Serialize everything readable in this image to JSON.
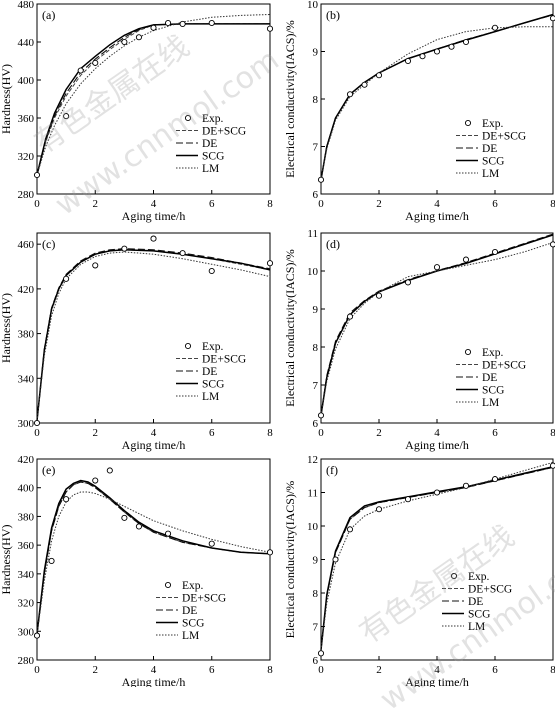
{
  "watermark": {
    "text_cn": "有色金属在线",
    "text_url": "www.cnnmol.com"
  },
  "legend_labels": [
    "Exp.",
    "DE+SCG",
    "DE",
    "SCG",
    "LM"
  ],
  "chart_data": [
    {
      "panel": "(a)",
      "type": "line",
      "xlabel": "Aging time/h",
      "ylabel": "Hardness(HV)",
      "xlim": [
        0,
        8
      ],
      "ylim": [
        280,
        480
      ],
      "xticks": [
        0,
        2,
        4,
        6,
        8
      ],
      "yticks": [
        280,
        320,
        360,
        400,
        440,
        480
      ],
      "exp": {
        "x": [
          0,
          1,
          1.5,
          2,
          3,
          3.5,
          4,
          4.5,
          5,
          6,
          8
        ],
        "y": [
          300,
          362,
          410,
          418,
          440,
          445,
          455,
          460,
          459,
          460,
          454
        ]
      },
      "series": [
        {
          "name": "DE+SCG",
          "x": [
            0,
            0.3,
            0.6,
            1,
            1.5,
            2,
            2.5,
            3,
            3.5,
            4,
            5,
            6,
            7,
            8
          ],
          "y": [
            300,
            335,
            360,
            383,
            405,
            420,
            432,
            443,
            452,
            458,
            459,
            459,
            459,
            459
          ]
        },
        {
          "name": "DE",
          "x": [
            0,
            0.3,
            0.6,
            1,
            1.5,
            2,
            2.5,
            3,
            3.5,
            4,
            5,
            6,
            7,
            8
          ],
          "y": [
            300,
            336,
            362,
            386,
            408,
            422,
            434,
            445,
            453,
            458,
            459,
            459,
            459,
            459
          ]
        },
        {
          "name": "SCG",
          "x": [
            0,
            0.3,
            0.6,
            1,
            1.5,
            2,
            2.5,
            3,
            3.5,
            4,
            5,
            6,
            7,
            8
          ],
          "y": [
            300,
            338,
            365,
            390,
            412,
            425,
            437,
            447,
            454,
            458,
            459,
            459,
            459,
            459
          ]
        },
        {
          "name": "LM",
          "x": [
            0,
            0.3,
            0.6,
            1,
            1.5,
            2,
            2.5,
            3,
            3.5,
            4,
            5,
            6,
            7,
            8
          ],
          "y": [
            300,
            330,
            352,
            375,
            396,
            412,
            425,
            436,
            445,
            452,
            461,
            466,
            468,
            469
          ]
        }
      ]
    },
    {
      "panel": "(b)",
      "type": "line",
      "xlabel": "Aging time/h",
      "ylabel": "Electrical conductivity(IACS)/%",
      "xlim": [
        0,
        8
      ],
      "ylim": [
        6,
        10
      ],
      "xticks": [
        0,
        2,
        4,
        6,
        8
      ],
      "yticks": [
        6,
        7,
        8,
        9,
        10
      ],
      "exp": {
        "x": [
          0,
          1,
          1.5,
          2,
          3,
          3.5,
          4,
          4.5,
          5,
          6,
          8
        ],
        "y": [
          6.3,
          8.1,
          8.3,
          8.5,
          8.8,
          8.9,
          9.0,
          9.1,
          9.2,
          9.5,
          9.7
        ]
      },
      "series": [
        {
          "name": "DE+SCG",
          "x": [
            0,
            0.2,
            0.5,
            1,
            1.5,
            2,
            3,
            4,
            5,
            6,
            7,
            8
          ],
          "y": [
            6.3,
            7.0,
            7.6,
            8.1,
            8.35,
            8.55,
            8.85,
            9.05,
            9.25,
            9.42,
            9.6,
            9.78
          ]
        },
        {
          "name": "DE",
          "x": [
            0,
            0.2,
            0.5,
            1,
            1.5,
            2,
            3,
            4,
            5,
            6,
            7,
            8
          ],
          "y": [
            6.3,
            7.0,
            7.6,
            8.1,
            8.35,
            8.55,
            8.85,
            9.05,
            9.25,
            9.42,
            9.6,
            9.77
          ]
        },
        {
          "name": "SCG",
          "x": [
            0,
            0.2,
            0.5,
            1,
            1.5,
            2,
            3,
            4,
            5,
            6,
            7,
            8
          ],
          "y": [
            6.3,
            7.0,
            7.6,
            8.1,
            8.35,
            8.55,
            8.85,
            9.05,
            9.24,
            9.42,
            9.6,
            9.78
          ]
        },
        {
          "name": "LM",
          "x": [
            0,
            0.2,
            0.5,
            1,
            1.5,
            2,
            3,
            4,
            5,
            6,
            7,
            8
          ],
          "y": [
            6.3,
            6.95,
            7.55,
            8.05,
            8.3,
            8.55,
            8.95,
            9.25,
            9.42,
            9.5,
            9.52,
            9.52
          ]
        }
      ]
    },
    {
      "panel": "(c)",
      "type": "line",
      "xlabel": "Aging time/h",
      "ylabel": "Hardness(HV)",
      "xlim": [
        0,
        8
      ],
      "ylim": [
        300,
        470
      ],
      "xticks": [
        0,
        2,
        4,
        6,
        8
      ],
      "yticks": [
        300,
        340,
        380,
        420,
        460
      ],
      "exp": {
        "x": [
          0,
          1,
          2,
          3,
          4,
          5,
          6,
          8
        ],
        "y": [
          300,
          429,
          441,
          456,
          465,
          452,
          436,
          443
        ]
      },
      "series": [
        {
          "name": "DE+SCG",
          "x": [
            0,
            0.25,
            0.5,
            0.75,
            1,
            1.5,
            2,
            2.5,
            3,
            4,
            5,
            6,
            7,
            8
          ],
          "y": [
            302,
            365,
            402,
            420,
            432,
            444,
            451,
            454,
            455,
            454,
            451,
            447,
            442,
            437
          ]
        },
        {
          "name": "DE",
          "x": [
            0,
            0.25,
            0.5,
            0.75,
            1,
            1.5,
            2,
            2.5,
            3,
            4,
            5,
            6,
            7,
            8
          ],
          "y": [
            302,
            366,
            403,
            421,
            433,
            445,
            452,
            455,
            456,
            455,
            452,
            448,
            443,
            438
          ]
        },
        {
          "name": "SCG",
          "x": [
            0,
            0.25,
            0.5,
            0.75,
            1,
            1.5,
            2,
            2.5,
            3,
            4,
            5,
            6,
            7,
            8
          ],
          "y": [
            302,
            365,
            402,
            420,
            432,
            444,
            451,
            454,
            455,
            454,
            451,
            447,
            443,
            437
          ]
        },
        {
          "name": "LM",
          "x": [
            0,
            0.25,
            0.5,
            0.75,
            1,
            1.5,
            2,
            2.5,
            3,
            4,
            5,
            6,
            7,
            8
          ],
          "y": [
            302,
            360,
            396,
            416,
            429,
            442,
            449,
            452,
            453,
            451,
            447,
            442,
            437,
            431
          ]
        }
      ]
    },
    {
      "panel": "(d)",
      "type": "line",
      "xlabel": "Aging time/h",
      "ylabel": "Electrical conductivity(IACS)/%",
      "xlim": [
        0,
        8
      ],
      "ylim": [
        6,
        11
      ],
      "xticks": [
        0,
        2,
        4,
        6,
        8
      ],
      "yticks": [
        6,
        7,
        8,
        9,
        10,
        11
      ],
      "exp": {
        "x": [
          0,
          1,
          2,
          3,
          4,
          5,
          6,
          8
        ],
        "y": [
          6.2,
          8.8,
          9.35,
          9.7,
          10.1,
          10.3,
          10.5,
          10.7
        ]
      },
      "series": [
        {
          "name": "DE+SCG",
          "x": [
            0,
            0.2,
            0.5,
            1,
            1.5,
            2,
            3,
            4,
            5,
            6,
            7,
            8
          ],
          "y": [
            6.2,
            7.2,
            8.1,
            8.85,
            9.2,
            9.45,
            9.75,
            10.0,
            10.2,
            10.45,
            10.7,
            10.95
          ]
        },
        {
          "name": "DE",
          "x": [
            0,
            0.2,
            0.5,
            1,
            1.5,
            2,
            3,
            4,
            5,
            6,
            7,
            8
          ],
          "y": [
            6.2,
            7.25,
            8.15,
            8.9,
            9.22,
            9.47,
            9.77,
            10.01,
            10.22,
            10.47,
            10.72,
            10.97
          ]
        },
        {
          "name": "SCG",
          "x": [
            0,
            0.2,
            0.5,
            1,
            1.5,
            2,
            3,
            4,
            5,
            6,
            7,
            8
          ],
          "y": [
            6.2,
            7.2,
            8.1,
            8.85,
            9.2,
            9.45,
            9.75,
            10.0,
            10.2,
            10.45,
            10.7,
            10.95
          ]
        },
        {
          "name": "LM",
          "x": [
            0,
            0.2,
            0.5,
            1,
            1.5,
            2,
            3,
            4,
            5,
            6,
            7,
            8
          ],
          "y": [
            6.2,
            7.1,
            7.95,
            8.75,
            9.15,
            9.45,
            9.85,
            10.0,
            10.15,
            10.3,
            10.5,
            10.75
          ]
        }
      ]
    },
    {
      "panel": "(e)",
      "type": "line",
      "xlabel": "Aging time/h",
      "ylabel": "Hardness(HV)",
      "xlim": [
        0,
        8
      ],
      "ylim": [
        280,
        420
      ],
      "xticks": [
        0,
        2,
        4,
        6,
        8
      ],
      "yticks": [
        280,
        300,
        320,
        340,
        360,
        380,
        400,
        420
      ],
      "exp": {
        "x": [
          0,
          0.5,
          1,
          2,
          2.5,
          3,
          3.5,
          4.5,
          6,
          8
        ],
        "y": [
          297,
          349,
          392,
          405,
          412,
          379,
          373,
          368,
          361,
          355
        ]
      },
      "series": [
        {
          "name": "DE+SCG",
          "x": [
            0,
            0.25,
            0.5,
            0.75,
            1,
            1.25,
            1.5,
            1.75,
            2,
            2.5,
            3,
            3.5,
            4,
            5,
            6,
            7,
            8
          ],
          "y": [
            298,
            340,
            370,
            387,
            397,
            402,
            404,
            403,
            400,
            392,
            383,
            375,
            369,
            362,
            358,
            355,
            354
          ]
        },
        {
          "name": "DE",
          "x": [
            0,
            0.25,
            0.5,
            0.75,
            1,
            1.25,
            1.5,
            1.75,
            2,
            2.5,
            3,
            3.5,
            4,
            5,
            6,
            7,
            8
          ],
          "y": [
            298,
            340,
            370,
            387,
            397,
            402,
            404,
            403,
            400,
            392,
            383,
            375,
            369,
            362,
            358,
            355,
            354
          ]
        },
        {
          "name": "SCG",
          "x": [
            0,
            0.25,
            0.5,
            0.75,
            1,
            1.25,
            1.5,
            1.75,
            2,
            2.5,
            3,
            3.5,
            4,
            5,
            6,
            7,
            8
          ],
          "y": [
            298,
            342,
            372,
            389,
            399,
            403,
            405,
            404,
            401,
            393,
            384,
            376,
            370,
            363,
            358,
            355,
            354
          ]
        },
        {
          "name": "LM",
          "x": [
            0,
            0.25,
            0.5,
            0.75,
            1,
            1.25,
            1.5,
            1.75,
            2,
            2.5,
            3,
            3.5,
            4,
            5,
            6,
            7,
            8
          ],
          "y": [
            298,
            335,
            363,
            380,
            390,
            395,
            397,
            397,
            396,
            392,
            387,
            382,
            377,
            370,
            364,
            359,
            355
          ]
        }
      ]
    },
    {
      "panel": "(f)",
      "type": "line",
      "xlabel": "Aging time/h",
      "ylabel": "Electrical conductivity(IACS)/%",
      "xlim": [
        0,
        8
      ],
      "ylim": [
        6,
        12
      ],
      "xticks": [
        0,
        2,
        4,
        6,
        8
      ],
      "yticks": [
        6,
        7,
        8,
        9,
        10,
        11,
        12
      ],
      "exp": {
        "x": [
          0,
          0.5,
          1,
          2,
          3,
          4,
          5,
          6,
          8
        ],
        "y": [
          6.2,
          9.0,
          9.9,
          10.5,
          10.8,
          11.0,
          11.2,
          11.4,
          11.8
        ]
      },
      "series": [
        {
          "name": "DE+SCG",
          "x": [
            0,
            0.2,
            0.5,
            1,
            1.5,
            2,
            3,
            4,
            5,
            6,
            7,
            8
          ],
          "y": [
            6.3,
            7.9,
            9.2,
            10.2,
            10.55,
            10.7,
            10.85,
            11.0,
            11.15,
            11.35,
            11.55,
            11.75
          ]
        },
        {
          "name": "DE",
          "x": [
            0,
            0.2,
            0.5,
            1,
            1.5,
            2,
            3,
            4,
            5,
            6,
            7,
            8
          ],
          "y": [
            6.3,
            7.9,
            9.2,
            10.2,
            10.55,
            10.7,
            10.85,
            11.0,
            11.15,
            11.35,
            11.55,
            11.75
          ]
        },
        {
          "name": "SCG",
          "x": [
            0,
            0.2,
            0.5,
            1,
            1.5,
            2,
            3,
            4,
            5,
            6,
            7,
            8
          ],
          "y": [
            6.3,
            7.95,
            9.25,
            10.25,
            10.6,
            10.72,
            10.87,
            11.02,
            11.17,
            11.37,
            11.57,
            11.77
          ]
        },
        {
          "name": "LM",
          "x": [
            0,
            0.2,
            0.5,
            1,
            1.5,
            2,
            3,
            4,
            5,
            6,
            7,
            8
          ],
          "y": [
            6.3,
            7.7,
            8.9,
            9.9,
            10.3,
            10.5,
            10.75,
            10.95,
            11.15,
            11.4,
            11.65,
            11.9
          ]
        }
      ]
    }
  ]
}
